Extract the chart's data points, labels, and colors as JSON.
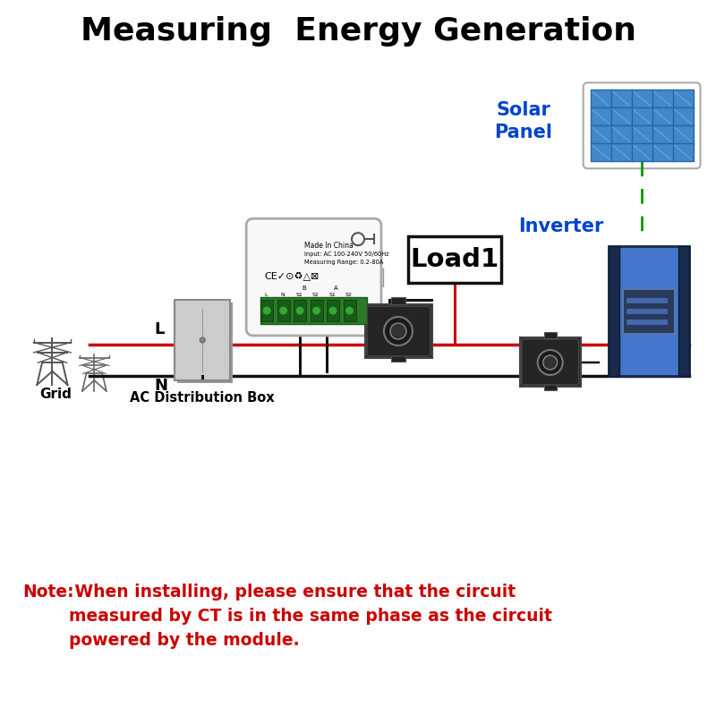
{
  "title": "Measuring  Energy Generation",
  "title_fontsize": 26,
  "title_fontweight": "bold",
  "bg_color": "#ffffff",
  "note_bold_prefix": "Note:",
  "note_rest": " When installing, please ensure that the circuit\nmeasured by CT is in the same phase as the circuit\npowered by the module.",
  "note_color": "#cc0000",
  "note_fontsize": 13.5,
  "label_grid": "Grid",
  "label_ac_box": "AC Distribution Box",
  "label_L": "L",
  "label_N": "N",
  "label_solar": "Solar\nPanel",
  "label_inverter": "Inverter",
  "label_load": "Load1",
  "line_L_color": "#cc0000",
  "line_N_color": "#111111",
  "wire_color_red": "#cc0000",
  "wire_color_black": "#111111",
  "inverter_color_main": "#4477cc",
  "inverter_color_dark": "#1a2a4a",
  "solar_color": "#4488cc",
  "solar_border": "#aaccee",
  "ct_color": "#1a1a1a",
  "meter_bg": "#f8f8f8",
  "meter_border": "#aaaaaa",
  "ac_box_color": "#c8c8c8",
  "green_wire": "#009900",
  "load_border": "#111111"
}
